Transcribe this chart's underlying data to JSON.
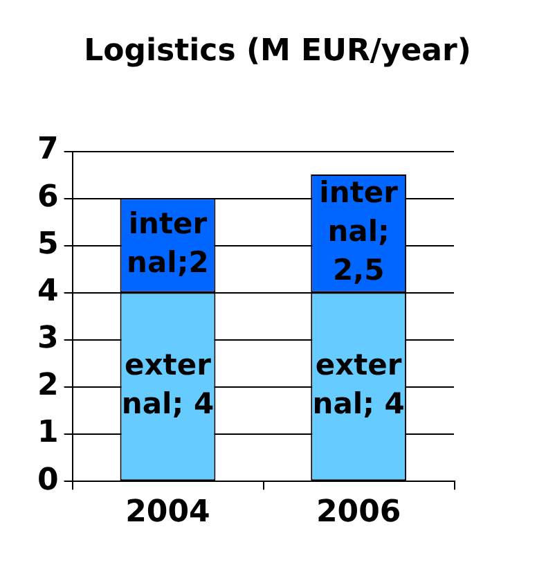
{
  "chart_data": {
    "type": "bar",
    "title": "Logistics (M EUR/year)",
    "categories": [
      "2004",
      "2006"
    ],
    "stacked": true,
    "series": [
      {
        "color": "#66ccff",
        "values": [
          4,
          4
        ],
        "value_labels": [
          "external; 4",
          "external; 4"
        ]
      },
      {
        "color": "#0066ff",
        "values": [
          2,
          2.5
        ],
        "value_labels": [
          "internal;2",
          "internal; 2,5"
        ]
      }
    ],
    "ylim": [
      0,
      7
    ],
    "yticks": [
      0,
      1,
      2,
      3,
      4,
      5,
      6,
      7
    ],
    "grid": "y",
    "legend": false
  }
}
